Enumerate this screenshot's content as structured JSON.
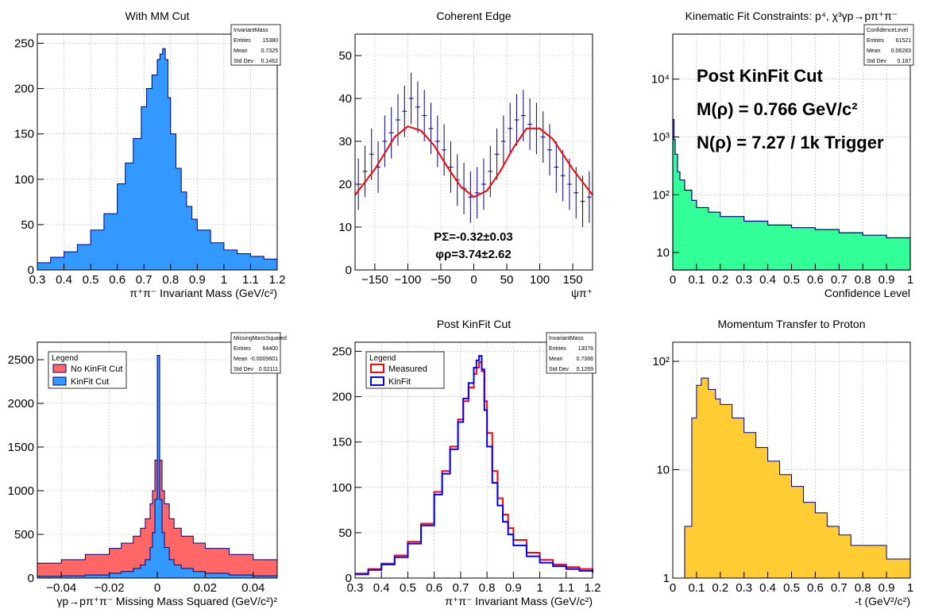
{
  "chart_data": [
    {
      "id": "p1",
      "type": "bar",
      "title": "With MM Cut",
      "xlabel": "π⁺π⁻ Invariant Mass (GeV/c²)",
      "ylabel": "",
      "xlim": [
        0.3,
        1.2
      ],
      "ylim": [
        0,
        260
      ],
      "xticks": [
        "0.3",
        "0.4",
        "0.5",
        "0.6",
        "0.7",
        "0.8",
        "0.9",
        "1",
        "1.1",
        "1.2"
      ],
      "yticks": [
        "0",
        "50",
        "100",
        "150",
        "200",
        "250"
      ],
      "yscale": "linear",
      "grid": true,
      "color": "#3399ff",
      "stats": {
        "name": "InvariantMass",
        "rows": [
          [
            "Entries",
            "15380"
          ],
          [
            "Mean",
            "0.7325"
          ],
          [
            "Std Dev",
            "0.1462"
          ]
        ]
      },
      "x": [
        0.3,
        0.35,
        0.4,
        0.45,
        0.5,
        0.55,
        0.6,
        0.63,
        0.66,
        0.69,
        0.71,
        0.73,
        0.75,
        0.76,
        0.77,
        0.78,
        0.79,
        0.8,
        0.82,
        0.84,
        0.86,
        0.88,
        0.9,
        0.95,
        1.0,
        1.05,
        1.1,
        1.15,
        1.2
      ],
      "values": [
        8,
        14,
        20,
        28,
        44,
        62,
        95,
        118,
        145,
        180,
        200,
        215,
        232,
        238,
        244,
        232,
        190,
        150,
        112,
        86,
        70,
        56,
        44,
        30,
        22,
        18,
        15,
        12,
        10
      ]
    },
    {
      "id": "p2",
      "type": "scatter",
      "title": "Coherent Edge",
      "xlabel": "ψπ⁺",
      "ylabel": "",
      "xlim": [
        -180,
        180
      ],
      "ylim": [
        0,
        55
      ],
      "xticks": [
        "−150",
        "−100",
        "−50",
        "0",
        "50",
        "100",
        "150"
      ],
      "yticks": [
        "0",
        "10",
        "20",
        "30",
        "40",
        "50"
      ],
      "grid": true,
      "annotations": [
        "PΣ=-0.32±0.03",
        "φρ=3.74±2.62"
      ],
      "series": [
        {
          "kind": "points",
          "x": [
            -175,
            -165,
            -155,
            -145,
            -135,
            -125,
            -115,
            -105,
            -95,
            -85,
            -75,
            -65,
            -55,
            -45,
            -35,
            -25,
            -15,
            -5,
            5,
            15,
            25,
            35,
            45,
            55,
            65,
            75,
            85,
            95,
            105,
            115,
            125,
            135,
            145,
            155,
            165,
            175
          ],
          "y": [
            20,
            23,
            27,
            24,
            30,
            32,
            35,
            37,
            40,
            38,
            36,
            33,
            30,
            28,
            24,
            21,
            19,
            17,
            18,
            20,
            23,
            27,
            30,
            33,
            35,
            36,
            34,
            33,
            31,
            28,
            24,
            22,
            20,
            18,
            16,
            17
          ]
        },
        {
          "kind": "fit",
          "x": [
            -180,
            -150,
            -120,
            -100,
            -80,
            -60,
            -40,
            -20,
            0,
            20,
            40,
            60,
            80,
            100,
            120,
            150,
            180
          ],
          "y": [
            17.5,
            23.5,
            31.0,
            33.5,
            32.5,
            29.0,
            24.0,
            19.5,
            17.0,
            18.5,
            23.0,
            28.5,
            33.0,
            33.0,
            30.5,
            23.5,
            17.5
          ]
        }
      ]
    },
    {
      "id": "p3",
      "type": "area",
      "title": "Kinematic Fit Constraints: p⁴, χ³γp→pπ⁺π⁻",
      "xlabel": "Confidence Level",
      "ylabel": "",
      "xlim": [
        0,
        1
      ],
      "ylim": [
        5,
        60000
      ],
      "yscale": "log",
      "xticks": [
        "0",
        "0.1",
        "0.2",
        "0.3",
        "0.4",
        "0.5",
        "0.6",
        "0.7",
        "0.8",
        "0.9",
        "1"
      ],
      "yticks": [
        "10",
        "10²",
        "10³",
        "10⁴"
      ],
      "grid": true,
      "color": "#33ff99",
      "stats": {
        "name": "ConfidenceLevel",
        "rows": [
          [
            "Entries",
            "61521"
          ],
          [
            "Mean",
            "0.06283"
          ],
          [
            "Std Dev",
            "0.187"
          ]
        ]
      },
      "annotations": [
        "Post KinFit Cut",
        "M(ρ) = 0.766 GeV/c²",
        "N(ρ) = 7.27 / 1k Trigger"
      ],
      "x": [
        0.0,
        0.005,
        0.01,
        0.02,
        0.03,
        0.05,
        0.08,
        0.1,
        0.15,
        0.2,
        0.3,
        0.4,
        0.5,
        0.6,
        0.7,
        0.8,
        0.9,
        1.0
      ],
      "values": [
        2000,
        900,
        500,
        250,
        180,
        120,
        80,
        60,
        50,
        42,
        35,
        30,
        27,
        25,
        22,
        20,
        18,
        16
      ]
    },
    {
      "id": "p4",
      "type": "bar",
      "title": "",
      "xlabel": "γp→pπ⁺π⁻ Missing Mass Squared (GeV/c²)²",
      "ylabel": "",
      "xlim": [
        -0.05,
        0.05
      ],
      "ylim": [
        0,
        2700
      ],
      "xticks": [
        "−0.04",
        "−0.02",
        "0",
        "0.02",
        "0.04"
      ],
      "yticks": [
        "0",
        "500",
        "1000",
        "1500",
        "2000",
        "2500"
      ],
      "grid": true,
      "legend": {
        "title": "Legend",
        "position": "top-left"
      },
      "stats": {
        "name": "MissingMassSquared",
        "rows": [
          [
            "Entries",
            "64400"
          ],
          [
            "Mean",
            "-0.0009601"
          ],
          [
            "Std Dev",
            "0.02111"
          ]
        ]
      },
      "x": [
        -0.05,
        -0.04,
        -0.03,
        -0.02,
        -0.015,
        -0.01,
        -0.007,
        -0.005,
        -0.003,
        -0.002,
        -0.001,
        0.0,
        0.001,
        0.002,
        0.003,
        0.005,
        0.007,
        0.01,
        0.015,
        0.02,
        0.03,
        0.04,
        0.05
      ],
      "series": [
        {
          "name": "No KinFit Cut",
          "color": "#ff6666",
          "values": [
            170,
            210,
            270,
            340,
            400,
            480,
            570,
            680,
            850,
            1000,
            1350,
            2550,
            1350,
            1000,
            850,
            680,
            570,
            480,
            400,
            340,
            270,
            210,
            170
          ]
        },
        {
          "name": "KinFit Cut",
          "color": "#3399ff",
          "values": [
            20,
            25,
            35,
            55,
            75,
            110,
            150,
            210,
            350,
            520,
            900,
            2550,
            900,
            520,
            350,
            210,
            150,
            110,
            75,
            55,
            35,
            25,
            20
          ]
        }
      ]
    },
    {
      "id": "p5",
      "type": "line",
      "title": "Post KinFit Cut",
      "xlabel": "π⁺π⁻ Invariant Mass (GeV/c²)",
      "ylabel": "",
      "xlim": [
        0.3,
        1.2
      ],
      "ylim": [
        0,
        260
      ],
      "xticks": [
        "0.3",
        "0.4",
        "0.5",
        "0.6",
        "0.7",
        "0.8",
        "0.9",
        "1",
        "1.1",
        "1.2"
      ],
      "yticks": [
        "0",
        "50",
        "100",
        "150",
        "200",
        "250"
      ],
      "grid": true,
      "legend": {
        "title": "Legend",
        "position": "top-left"
      },
      "stats": {
        "name": "InvariantMass",
        "rows": [
          [
            "Entries",
            "13076"
          ],
          [
            "Mean",
            "0.7366"
          ],
          [
            "Std Dev",
            "0.1269"
          ]
        ]
      },
      "x": [
        0.3,
        0.35,
        0.4,
        0.45,
        0.5,
        0.55,
        0.6,
        0.63,
        0.66,
        0.69,
        0.71,
        0.73,
        0.75,
        0.76,
        0.77,
        0.78,
        0.79,
        0.8,
        0.82,
        0.84,
        0.86,
        0.88,
        0.9,
        0.95,
        1.0,
        1.05,
        1.1,
        1.15,
        1.2
      ],
      "series": [
        {
          "name": "Measured",
          "color": "#ff0000",
          "values": [
            5,
            10,
            16,
            25,
            40,
            60,
            95,
            118,
            145,
            175,
            195,
            210,
            225,
            232,
            238,
            228,
            195,
            160,
            118,
            88,
            70,
            55,
            42,
            28,
            20,
            15,
            12,
            10,
            8
          ]
        },
        {
          "name": "KinFit",
          "color": "#0000ff",
          "values": [
            4,
            9,
            15,
            23,
            38,
            58,
            92,
            115,
            142,
            172,
            198,
            215,
            232,
            240,
            245,
            230,
            185,
            145,
            105,
            80,
            62,
            48,
            36,
            24,
            17,
            13,
            10,
            8,
            6
          ]
        }
      ]
    },
    {
      "id": "p6",
      "type": "bar",
      "title": "Momentum Transfer to Proton",
      "xlabel": "-t (GeV²/c²)",
      "ylabel": "",
      "xlim": [
        0,
        1
      ],
      "ylim": [
        1,
        150
      ],
      "yscale": "log",
      "xticks": [
        "0",
        "0.1",
        "0.2",
        "0.3",
        "0.4",
        "0.5",
        "0.6",
        "0.7",
        "0.8",
        "0.9",
        "1"
      ],
      "yticks": [
        "1",
        "10",
        "10²"
      ],
      "grid": true,
      "color": "#ffcc33",
      "x": [
        0.05,
        0.08,
        0.1,
        0.12,
        0.15,
        0.18,
        0.2,
        0.25,
        0.3,
        0.35,
        0.4,
        0.45,
        0.5,
        0.55,
        0.6,
        0.65,
        0.7,
        0.75,
        0.8,
        0.9,
        1.0
      ],
      "values": [
        3,
        30,
        60,
        70,
        55,
        45,
        40,
        30,
        22,
        16,
        12,
        9,
        7,
        5,
        4,
        3,
        2.5,
        2,
        2,
        1.5,
        1.5
      ]
    }
  ]
}
